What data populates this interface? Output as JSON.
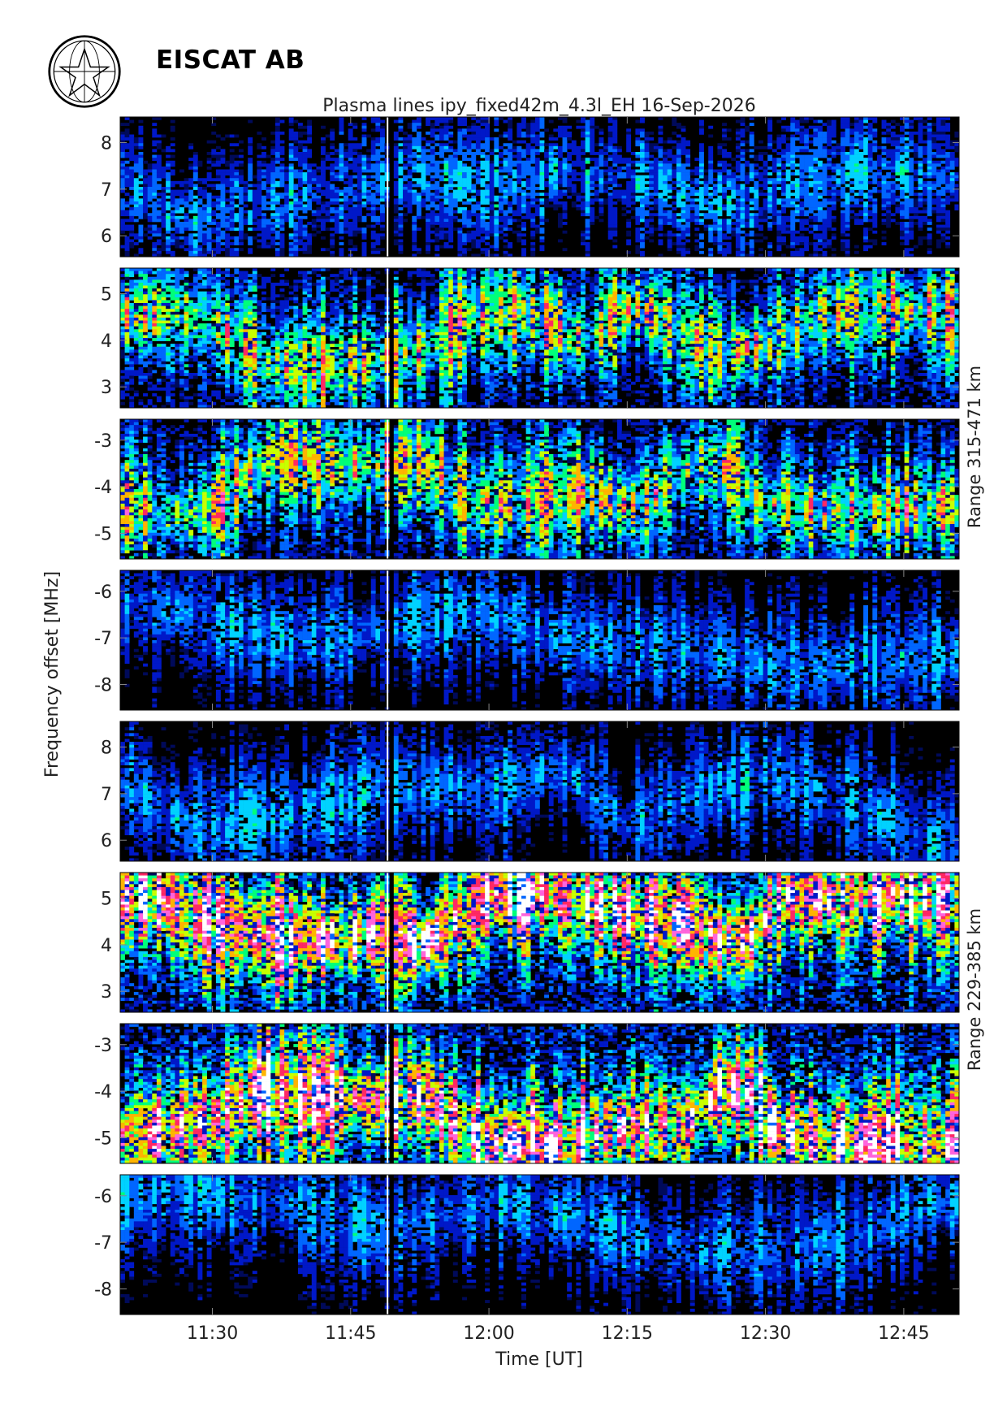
{
  "header": {
    "org_name": "EISCAT AB",
    "logo_icon": "eiscat-globe-logo"
  },
  "chart_data": {
    "type": "heatmap",
    "title": "Plasma lines   ipy_fixed42m_4.3l_EH  16-Sep-2026",
    "xlabel": "Time [UT]",
    "ylabel": "Frequency offset [MHz]",
    "xlim": [
      "11:20",
      "12:51"
    ],
    "x_ticks": [
      "11:30",
      "11:45",
      "12:00",
      "12:15",
      "12:30",
      "12:45"
    ],
    "range_labels": [
      "Range 315-471 km",
      "Range 229-385 km"
    ],
    "colormap": [
      "#000000",
      "#000a5a",
      "#0018c8",
      "#0066ff",
      "#00d2ff",
      "#00ff7a",
      "#c8ff00",
      "#ffb400",
      "#ff2864",
      "#ff64dc",
      "#ffffff"
    ],
    "data_gap_time": "11:49",
    "panels": [
      {
        "range_group": 1,
        "ylim": [
          5.55,
          8.55
        ],
        "y_ticks": [
          "6",
          "7",
          "8"
        ],
        "activity": "low",
        "trace": [
          [
            0,
            7.1
          ],
          [
            8,
            6.3
          ],
          [
            15,
            6.7
          ],
          [
            25,
            7.0
          ],
          [
            32,
            7.4
          ],
          [
            40,
            7.0
          ],
          [
            48,
            7.5
          ],
          [
            58,
            7.1
          ],
          [
            65,
            6.6
          ],
          [
            72,
            7.1
          ],
          [
            80,
            7.4
          ],
          [
            91,
            7.3
          ]
        ]
      },
      {
        "range_group": 1,
        "ylim": [
          2.55,
          5.55
        ],
        "y_ticks": [
          "3",
          "4",
          "5"
        ],
        "activity": "moderate",
        "trace": [
          [
            0,
            4.6
          ],
          [
            6,
            4.6
          ],
          [
            10,
            4.4
          ],
          [
            16,
            3.4
          ],
          [
            25,
            3.5
          ],
          [
            33,
            3.8
          ],
          [
            38,
            4.5
          ],
          [
            44,
            4.6
          ],
          [
            50,
            4.0
          ],
          [
            56,
            4.8
          ],
          [
            62,
            4.0
          ],
          [
            66,
            3.7
          ],
          [
            70,
            3.9
          ],
          [
            76,
            4.6
          ],
          [
            81,
            4.6
          ],
          [
            86,
            4.6
          ],
          [
            91,
            4.5
          ]
        ]
      },
      {
        "range_group": 1,
        "ylim": [
          -5.55,
          -2.55
        ],
        "y_ticks": [
          "-3",
          "-4",
          "-5"
        ],
        "activity": "moderate",
        "trace": [
          [
            0,
            -4.4
          ],
          [
            6,
            -4.6
          ],
          [
            10,
            -4.5
          ],
          [
            16,
            -3.4
          ],
          [
            25,
            -3.5
          ],
          [
            33,
            -3.5
          ],
          [
            38,
            -4.4
          ],
          [
            44,
            -4.3
          ],
          [
            50,
            -4.1
          ],
          [
            56,
            -4.5
          ],
          [
            62,
            -3.5
          ],
          [
            66,
            -3.6
          ],
          [
            70,
            -4.4
          ],
          [
            76,
            -4.5
          ],
          [
            81,
            -4.6
          ],
          [
            86,
            -4.4
          ],
          [
            91,
            -4.5
          ]
        ]
      },
      {
        "range_group": 1,
        "ylim": [
          -8.55,
          -5.55
        ],
        "y_ticks": [
          "-6",
          "-7",
          "-8"
        ],
        "activity": "low",
        "trace": [
          [
            0,
            -6.2
          ],
          [
            8,
            -6.5
          ],
          [
            15,
            -6.9
          ],
          [
            25,
            -7.0
          ],
          [
            32,
            -6.6
          ],
          [
            40,
            -6.4
          ],
          [
            48,
            -7.0
          ],
          [
            58,
            -7.2
          ],
          [
            65,
            -7.3
          ],
          [
            72,
            -7.7
          ],
          [
            80,
            -7.5
          ],
          [
            91,
            -7.4
          ]
        ]
      },
      {
        "range_group": 2,
        "ylim": [
          5.55,
          8.55
        ],
        "y_ticks": [
          "6",
          "7",
          "8"
        ],
        "activity": "low",
        "trace": [
          [
            0,
            7.3
          ],
          [
            8,
            6.2
          ],
          [
            20,
            6.6
          ],
          [
            30,
            7.2
          ],
          [
            40,
            7.1
          ],
          [
            48,
            7.6
          ],
          [
            55,
            6.3
          ],
          [
            62,
            7.0
          ],
          [
            70,
            7.4
          ],
          [
            80,
            6.8
          ],
          [
            88,
            5.9
          ],
          [
            91,
            5.9
          ]
        ]
      },
      {
        "range_group": 2,
        "ylim": [
          2.55,
          5.55
        ],
        "y_ticks": [
          "3",
          "4",
          "5"
        ],
        "activity": "strong",
        "trace": [
          [
            0,
            5.0
          ],
          [
            4,
            5.0
          ],
          [
            7,
            4.7
          ],
          [
            10,
            4.5
          ],
          [
            15,
            4.2
          ],
          [
            22,
            4.1
          ],
          [
            28,
            4.3
          ],
          [
            33,
            4.0
          ],
          [
            40,
            5.1
          ],
          [
            48,
            5.1
          ],
          [
            55,
            4.6
          ],
          [
            61,
            4.5
          ],
          [
            65,
            4.1
          ],
          [
            68,
            4.1
          ],
          [
            72,
            5.0
          ],
          [
            78,
            5.0
          ],
          [
            84,
            5.1
          ],
          [
            91,
            5.0
          ]
        ]
      },
      {
        "range_group": 2,
        "ylim": [
          -5.55,
          -2.55
        ],
        "y_ticks": [
          "-3",
          "-4",
          "-5"
        ],
        "activity": "strong",
        "trace": [
          [
            0,
            -5.0
          ],
          [
            4,
            -4.9
          ],
          [
            8,
            -4.7
          ],
          [
            11,
            -4.6
          ],
          [
            15,
            -4.0
          ],
          [
            22,
            -4.1
          ],
          [
            28,
            -4.2
          ],
          [
            33,
            -4.1
          ],
          [
            40,
            -5.2
          ],
          [
            48,
            -5.2
          ],
          [
            55,
            -4.7
          ],
          [
            61,
            -4.8
          ],
          [
            65,
            -4.0
          ],
          [
            68,
            -4.0
          ],
          [
            72,
            -5.0
          ],
          [
            78,
            -5.1
          ],
          [
            84,
            -5.2
          ],
          [
            91,
            -5.1
          ]
        ]
      },
      {
        "range_group": 2,
        "ylim": [
          -8.55,
          -5.55
        ],
        "y_ticks": [
          "-6",
          "-7",
          "-8"
        ],
        "activity": "low",
        "trace": [
          [
            0,
            -6.0
          ],
          [
            8,
            -5.9
          ],
          [
            20,
            -6.2
          ],
          [
            30,
            -6.8
          ],
          [
            40,
            -6.1
          ],
          [
            48,
            -6.4
          ],
          [
            55,
            -6.8
          ],
          [
            62,
            -7.2
          ],
          [
            70,
            -7.1
          ],
          [
            80,
            -7.0
          ],
          [
            88,
            -6.0
          ],
          [
            91,
            -6.1
          ]
        ]
      }
    ]
  }
}
